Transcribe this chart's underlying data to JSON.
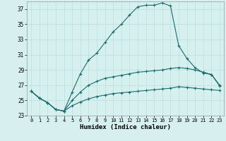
{
  "xlabel": "Humidex (Indice chaleur)",
  "bg_color": "#d6f0ef",
  "grid_color": "#c4e0de",
  "line_color": "#1a6b6b",
  "xlim": [
    -0.5,
    23.5
  ],
  "ylim": [
    23,
    38
  ],
  "yticks": [
    23,
    25,
    27,
    29,
    31,
    33,
    35,
    37
  ],
  "xticks": [
    0,
    1,
    2,
    3,
    4,
    5,
    6,
    7,
    8,
    9,
    10,
    11,
    12,
    13,
    14,
    15,
    16,
    17,
    18,
    19,
    20,
    21,
    22,
    23
  ],
  "series1_x": [
    0,
    1,
    2,
    3,
    4,
    5,
    6,
    7,
    8,
    9,
    10,
    11,
    12,
    13,
    14,
    15,
    16,
    17,
    18,
    19,
    20,
    21,
    22,
    23
  ],
  "series1_y": [
    26.2,
    25.3,
    24.7,
    23.8,
    23.6,
    26.1,
    28.5,
    30.3,
    31.2,
    32.6,
    34.0,
    35.0,
    36.2,
    37.3,
    37.5,
    37.5,
    37.8,
    37.4,
    32.2,
    30.5,
    29.3,
    28.6,
    28.4,
    26.9
  ],
  "series2_x": [
    0,
    1,
    2,
    3,
    4,
    5,
    6,
    7,
    8,
    9,
    10,
    11,
    12,
    13,
    14,
    15,
    16,
    17,
    18,
    19,
    20,
    21,
    22,
    23
  ],
  "series2_y": [
    26.2,
    25.3,
    24.7,
    23.8,
    23.6,
    25.0,
    26.1,
    27.0,
    27.5,
    27.9,
    28.1,
    28.3,
    28.5,
    28.7,
    28.8,
    28.9,
    29.0,
    29.2,
    29.3,
    29.2,
    29.0,
    28.7,
    28.4,
    27.0
  ],
  "series3_x": [
    0,
    1,
    2,
    3,
    4,
    5,
    6,
    7,
    8,
    9,
    10,
    11,
    12,
    13,
    14,
    15,
    16,
    17,
    18,
    19,
    20,
    21,
    22,
    23
  ],
  "series3_y": [
    26.2,
    25.3,
    24.7,
    23.8,
    23.6,
    24.3,
    24.8,
    25.2,
    25.5,
    25.7,
    25.9,
    26.0,
    26.1,
    26.2,
    26.3,
    26.4,
    26.5,
    26.6,
    26.8,
    26.7,
    26.6,
    26.5,
    26.4,
    26.3
  ]
}
